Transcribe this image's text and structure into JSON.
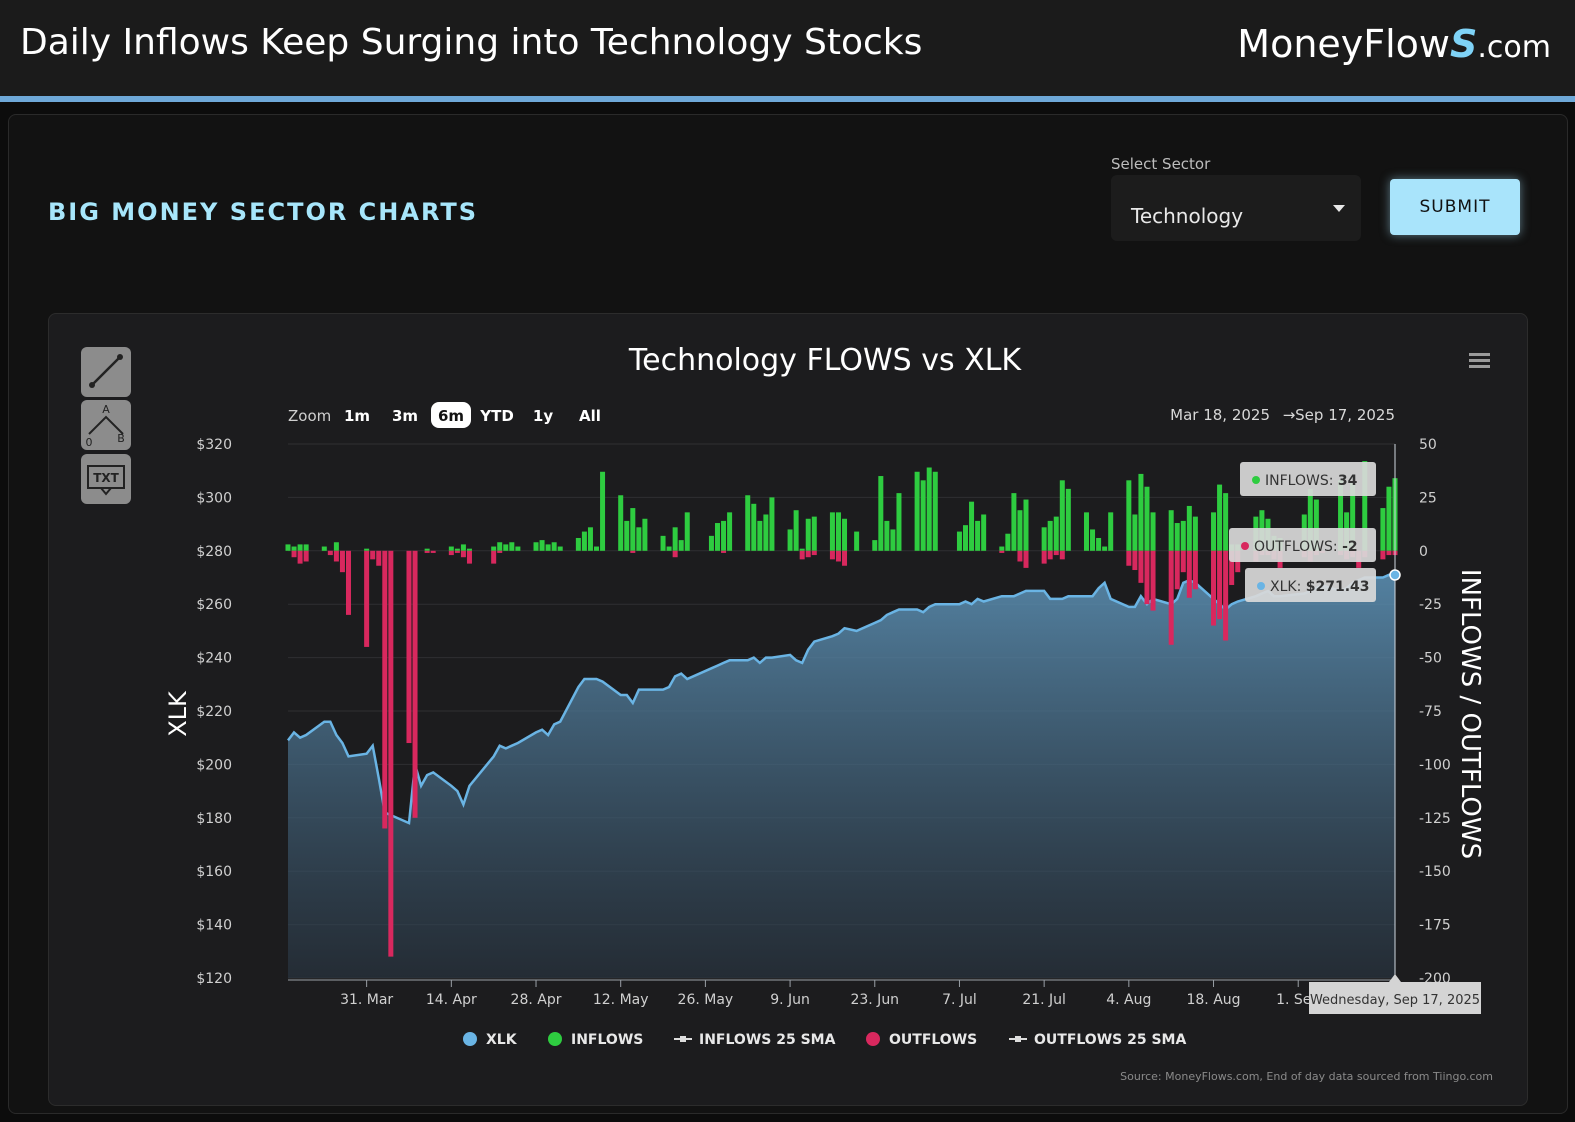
{
  "header": {
    "headline": "Daily Inflows Keep Surging into Technology Stocks",
    "brand_main": "MoneyFlow",
    "brand_s": "S",
    "brand_tld": ".com"
  },
  "panel": {
    "title": "BIG MONEY SECTOR CHARTS",
    "sector_label": "Select Sector",
    "sector_value": "Technology",
    "submit_label": "SUBMIT"
  },
  "tools": {
    "txt_label": "TXT",
    "ab_a": "A",
    "ab_b": "B",
    "ab_0": "0"
  },
  "chart_ui": {
    "zoom_label": "Zoom",
    "zoom_options": [
      "1m",
      "3m",
      "6m",
      "YTD",
      "1y",
      "All"
    ],
    "zoom_selected": "6m",
    "range_from": "Mar 18, 2025",
    "range_arrow": "→",
    "range_to": "Sep 17, 2025",
    "tooltip_inflows_label": "INFLOWS: ",
    "tooltip_inflows_value": "34",
    "tooltip_outflows_label": "OUTFLOWS: ",
    "tooltip_outflows_value": "-2",
    "tooltip_xlk_label": "XLK: ",
    "tooltip_xlk_value": "$271.43",
    "crosshair_date": "Wednesday, Sep 17, 2025",
    "source": "Source: MoneyFlows.com, End of day data sourced from Tiingo.com"
  },
  "colors": {
    "xlk": "#6ab4e4",
    "inflows": "#2ecc40",
    "outflows": "#d8285e",
    "accent": "#a7e6fb"
  },
  "chart_data": {
    "type": "line",
    "title": "Technology FLOWS vs XLK",
    "ylabel_left": "XLK",
    "ylabel_right": "INFLOWS / OUTFLOWS",
    "ylim_left": [
      120,
      320
    ],
    "ylim_right": [
      -200,
      50
    ],
    "yticks_left": [
      "$120",
      "$140",
      "$160",
      "$180",
      "$200",
      "$220",
      "$240",
      "$260",
      "$280",
      "$300",
      "$320"
    ],
    "yticks_right": [
      "-200",
      "-175",
      "-150",
      "-125",
      "-100",
      "-75",
      "-50",
      "-25",
      "0",
      "25",
      "50"
    ],
    "x_tick_labels": [
      "31. Mar",
      "14. Apr",
      "28. Apr",
      "12. May",
      "26. May",
      "9. Jun",
      "23. Jun",
      "7. Jul",
      "21. Jul",
      "4. Aug",
      "18. Aug",
      "1. Sep"
    ],
    "x_start": "2025-03-18",
    "x_end": "2025-09-17",
    "legend": [
      "XLK",
      "INFLOWS",
      "INFLOWS 25 SMA",
      "OUTFLOWS",
      "OUTFLOWS 25 SMA"
    ],
    "legend_position": "bottom",
    "series": [
      {
        "name": "XLK",
        "type": "area",
        "x": [
          "2025-03-18",
          "2025-03-19",
          "2025-03-20",
          "2025-03-21",
          "2025-03-24",
          "2025-03-25",
          "2025-03-26",
          "2025-03-27",
          "2025-03-28",
          "2025-03-31",
          "2025-04-01",
          "2025-04-02",
          "2025-04-03",
          "2025-04-04",
          "2025-04-07",
          "2025-04-08",
          "2025-04-09",
          "2025-04-10",
          "2025-04-11",
          "2025-04-14",
          "2025-04-15",
          "2025-04-16",
          "2025-04-17",
          "2025-04-21",
          "2025-04-22",
          "2025-04-23",
          "2025-04-24",
          "2025-04-25",
          "2025-04-28",
          "2025-04-29",
          "2025-04-30",
          "2025-05-01",
          "2025-05-02",
          "2025-05-05",
          "2025-05-06",
          "2025-05-07",
          "2025-05-08",
          "2025-05-09",
          "2025-05-12",
          "2025-05-13",
          "2025-05-14",
          "2025-05-15",
          "2025-05-16",
          "2025-05-19",
          "2025-05-20",
          "2025-05-21",
          "2025-05-22",
          "2025-05-23",
          "2025-05-27",
          "2025-05-28",
          "2025-05-29",
          "2025-05-30",
          "2025-06-02",
          "2025-06-03",
          "2025-06-04",
          "2025-06-05",
          "2025-06-06",
          "2025-06-09",
          "2025-06-10",
          "2025-06-11",
          "2025-06-12",
          "2025-06-13",
          "2025-06-16",
          "2025-06-17",
          "2025-06-18",
          "2025-06-20",
          "2025-06-23",
          "2025-06-24",
          "2025-06-25",
          "2025-06-26",
          "2025-06-27",
          "2025-06-30",
          "2025-07-01",
          "2025-07-02",
          "2025-07-03",
          "2025-07-07",
          "2025-07-08",
          "2025-07-09",
          "2025-07-10",
          "2025-07-11",
          "2025-07-14",
          "2025-07-15",
          "2025-07-16",
          "2025-07-17",
          "2025-07-18",
          "2025-07-21",
          "2025-07-22",
          "2025-07-23",
          "2025-07-24",
          "2025-07-25",
          "2025-07-28",
          "2025-07-29",
          "2025-07-30",
          "2025-07-31",
          "2025-08-01",
          "2025-08-04",
          "2025-08-05",
          "2025-08-06",
          "2025-08-07",
          "2025-08-08",
          "2025-08-11",
          "2025-08-12",
          "2025-08-13",
          "2025-08-14",
          "2025-08-15",
          "2025-08-18",
          "2025-08-19",
          "2025-08-20",
          "2025-08-21",
          "2025-08-22",
          "2025-08-25",
          "2025-08-26",
          "2025-08-27",
          "2025-08-28",
          "2025-08-29",
          "2025-09-02",
          "2025-09-03",
          "2025-09-04",
          "2025-09-05",
          "2025-09-08",
          "2025-09-09",
          "2025-09-10",
          "2025-09-11",
          "2025-09-12",
          "2025-09-15",
          "2025-09-16",
          "2025-09-17"
        ],
        "values": [
          209,
          212,
          210,
          211,
          216,
          216,
          211,
          208,
          203,
          204,
          207,
          195,
          182,
          181,
          178,
          200,
          192,
          196,
          197,
          192,
          190,
          185,
          192,
          203,
          207,
          206,
          207,
          208,
          212,
          213,
          211,
          215,
          216,
          229,
          232,
          232,
          232,
          231,
          226,
          226,
          223,
          228,
          228,
          228,
          229,
          233,
          234,
          232,
          236,
          237,
          238,
          239,
          239,
          240,
          238,
          240,
          240,
          241,
          239,
          238,
          243,
          246,
          248,
          249,
          251,
          250,
          253,
          254,
          256,
          257,
          258,
          258,
          257,
          259,
          260,
          260,
          261,
          260,
          262,
          261,
          263,
          263,
          263,
          264,
          265,
          265,
          262,
          262,
          262,
          263,
          263,
          263,
          266,
          268,
          262,
          259,
          259,
          263,
          260,
          262,
          260,
          262,
          268,
          269,
          268,
          262,
          260,
          258,
          260,
          261,
          263,
          264,
          265,
          263,
          263,
          264,
          265,
          266,
          267,
          265,
          266,
          268,
          269,
          270,
          270,
          271,
          271.43
        ]
      },
      {
        "name": "INFLOWS",
        "type": "bar",
        "values": [
          3,
          2,
          3,
          3,
          2,
          0,
          4,
          0,
          0,
          1,
          0,
          0,
          0,
          0,
          0,
          0,
          0,
          1,
          0,
          2,
          1,
          3,
          1,
          2,
          4,
          3,
          4,
          2,
          4,
          5,
          3,
          4,
          2,
          6,
          9,
          11,
          2,
          37,
          26,
          14,
          20,
          11,
          15,
          7,
          2,
          11,
          5,
          18,
          7,
          13,
          14,
          18,
          26,
          22,
          14,
          17,
          25,
          10,
          19,
          1,
          15,
          16,
          18,
          18,
          15,
          9,
          5,
          35,
          14,
          10,
          27,
          37,
          33,
          39,
          37,
          9,
          12,
          23,
          14,
          17,
          2,
          8,
          27,
          19,
          24,
          11,
          14,
          16,
          33,
          29,
          18,
          10,
          6,
          2,
          18,
          33,
          17,
          36,
          30,
          18,
          19,
          13,
          14,
          21,
          16,
          18,
          31,
          27,
          3,
          3,
          16,
          19,
          15,
          7,
          6,
          17,
          29,
          24,
          0,
          33,
          18,
          32,
          0,
          42,
          20,
          30,
          34
        ]
      },
      {
        "name": "OUTFLOWS",
        "type": "bar",
        "values": [
          0,
          -3,
          -6,
          -5,
          0,
          -2,
          -5,
          -10,
          -30,
          -45,
          -4,
          -7,
          -130,
          -190,
          -90,
          -125,
          0,
          -1,
          -1,
          -2,
          -1,
          -3,
          -6,
          -6,
          -1,
          0,
          0,
          0,
          0,
          0,
          0,
          0,
          0,
          0,
          0,
          0,
          0,
          0,
          0,
          0,
          -1,
          0,
          0,
          0,
          0,
          -3,
          0,
          0,
          0,
          0,
          -1,
          0,
          0,
          0,
          0,
          0,
          0,
          0,
          0,
          -4,
          -3,
          -2,
          -4,
          -5,
          -7,
          0,
          0,
          0,
          0,
          0,
          0,
          0,
          0,
          0,
          0,
          0,
          0,
          0,
          0,
          0,
          -1,
          0,
          0,
          -5,
          -8,
          -6,
          -4,
          -2,
          -4,
          0,
          0,
          0,
          0,
          0,
          0,
          -7,
          -9,
          -15,
          -25,
          -28,
          -44,
          -18,
          -10,
          -22,
          -18,
          -35,
          -32,
          -42,
          -16,
          -10,
          -5,
          -2,
          -2,
          -4,
          -8,
          -3,
          -5,
          -2,
          -1,
          -2,
          -4,
          -3,
          -8,
          -3,
          -4,
          -2,
          -2
        ]
      }
    ]
  }
}
